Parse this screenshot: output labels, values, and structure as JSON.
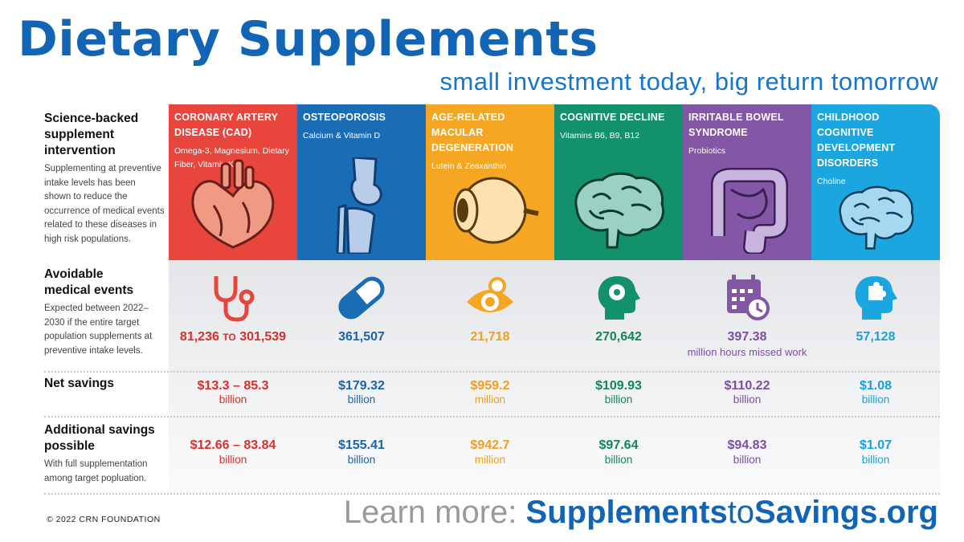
{
  "title": "Dietary Supplements",
  "subtitle": "small investment today, big return tomorrow",
  "row_labels": {
    "intervention": {
      "heading": "Science-backed supplement intervention",
      "desc": "Supplementing at preventive intake levels has been shown to reduce the occurrence of medical events related to these diseases in high risk populations."
    },
    "avoidable": {
      "heading": "Avoidable medical events",
      "desc": "Expected between 2022–2030 if the entire target population supplements at preventive intake levels."
    },
    "net": {
      "heading": "Net savings"
    },
    "additional": {
      "heading": "Additional savings possible",
      "desc": "With full supplementation among target popluation."
    }
  },
  "columns": [
    {
      "name": "CORONARY ARTERY DISEASE (CAD)",
      "supplements": "Omega-3, Magnesium, Dietary Fiber, Vitamin K2",
      "color": "#e8463c",
      "text_color": "#d8302a",
      "header_icon": "heart-icon",
      "event_icon": "stethoscope-icon",
      "events_low": "81,236",
      "events_to": "TO",
      "events_high": "301,539",
      "events_note": "",
      "net": "$13.3 – 85.3",
      "net_unit": "billion",
      "add": "$12.66 – 83.84",
      "add_unit": "billion"
    },
    {
      "name": "OSTEOPOROSIS",
      "supplements": "Calcium & Vitamin D",
      "color": "#1a6db5",
      "text_color": "#1a63ad",
      "header_icon": "knee-joint-icon",
      "event_icon": "pill-capsule-icon",
      "events": "361,507",
      "events_note": "",
      "net": "$179.32",
      "net_unit": "billion",
      "add": "$155.41",
      "add_unit": "billion"
    },
    {
      "name": "AGE-RELATED MACULAR DEGENERATION",
      "supplements": "Lutein & Zeaxanthin",
      "color": "#f5a623",
      "text_color": "#f0a01e",
      "header_icon": "eyeball-icon",
      "event_icon": "eye-icon",
      "events": "21,718",
      "events_note": "",
      "net": "$959.2",
      "net_unit": "million",
      "add": "$942.7",
      "add_unit": "million"
    },
    {
      "name": "COGNITIVE DECLINE",
      "supplements": "Vitamins B6, B9, B12",
      "color": "#12916c",
      "text_color": "#11855f",
      "header_icon": "brain-icon",
      "event_icon": "head-gear-icon",
      "events": "270,642",
      "events_note": "",
      "net": "$109.93",
      "net_unit": "billion",
      "add": "$97.64",
      "add_unit": "billion"
    },
    {
      "name": "IRRITABLE BOWEL SYNDROME",
      "supplements": "Probiotics",
      "color": "#8356a6",
      "text_color": "#7d4ea3",
      "header_icon": "intestine-icon",
      "event_icon": "calendar-clock-icon",
      "events": "397.38",
      "events_note": "million hours missed work",
      "net": "$110.22",
      "net_unit": "billion",
      "add": "$94.83",
      "add_unit": "billion"
    },
    {
      "name": "CHILDHOOD COGNITIVE DEVELOPMENT DISORDERS",
      "supplements": "Choline",
      "color": "#1ba6e0",
      "text_color": "#1aa0db",
      "header_icon": "brain-icon",
      "event_icon": "head-puzzle-icon",
      "events": "57,128",
      "events_note": "",
      "net": "$1.08",
      "net_unit": "billion",
      "add": "$1.07",
      "add_unit": "billion"
    }
  ],
  "footer": {
    "copyright": "© 2022 CRN FOUNDATION",
    "learn_more": "Learn more: ",
    "url_a": "Supplements",
    "url_b": "to",
    "url_c": "Savings.org"
  }
}
